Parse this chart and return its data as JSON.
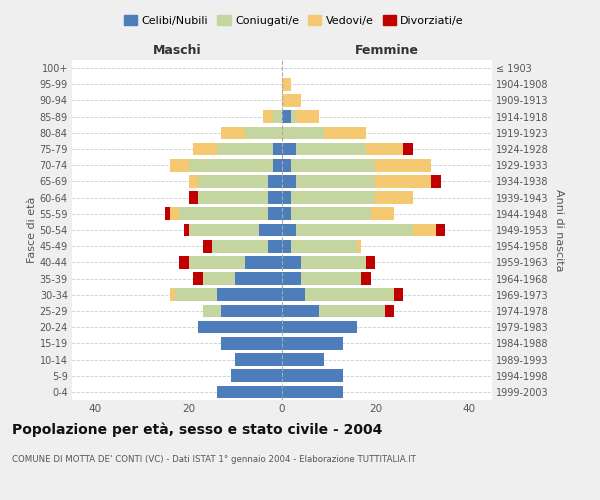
{
  "age_groups": [
    "0-4",
    "5-9",
    "10-14",
    "15-19",
    "20-24",
    "25-29",
    "30-34",
    "35-39",
    "40-44",
    "45-49",
    "50-54",
    "55-59",
    "60-64",
    "65-69",
    "70-74",
    "75-79",
    "80-84",
    "85-89",
    "90-94",
    "95-99",
    "100+"
  ],
  "birth_years": [
    "1999-2003",
    "1994-1998",
    "1989-1993",
    "1984-1988",
    "1979-1983",
    "1974-1978",
    "1969-1973",
    "1964-1968",
    "1959-1963",
    "1954-1958",
    "1949-1953",
    "1944-1948",
    "1939-1943",
    "1934-1938",
    "1929-1933",
    "1924-1928",
    "1919-1923",
    "1914-1918",
    "1909-1913",
    "1904-1908",
    "≤ 1903"
  ],
  "colors": {
    "celibi": "#4d7dba",
    "coniugati": "#c5d5a0",
    "vedovi": "#f5c872",
    "divorziati": "#c00000"
  },
  "maschi": {
    "celibi": [
      14,
      11,
      10,
      13,
      18,
      13,
      14,
      10,
      8,
      3,
      5,
      3,
      3,
      3,
      2,
      2,
      0,
      0,
      0,
      0,
      0
    ],
    "coniugati": [
      0,
      0,
      0,
      0,
      0,
      4,
      9,
      7,
      12,
      12,
      15,
      19,
      15,
      15,
      18,
      12,
      8,
      2,
      0,
      0,
      0
    ],
    "vedovi": [
      0,
      0,
      0,
      0,
      0,
      0,
      1,
      0,
      0,
      0,
      0,
      2,
      0,
      2,
      4,
      5,
      5,
      2,
      0,
      0,
      0
    ],
    "divorziati": [
      0,
      0,
      0,
      0,
      0,
      0,
      0,
      2,
      2,
      2,
      1,
      1,
      2,
      0,
      0,
      0,
      0,
      0,
      0,
      0,
      0
    ]
  },
  "femmine": {
    "celibi": [
      13,
      13,
      9,
      13,
      16,
      8,
      5,
      4,
      4,
      2,
      3,
      2,
      2,
      3,
      2,
      3,
      0,
      2,
      0,
      0,
      0
    ],
    "coniugati": [
      0,
      0,
      0,
      0,
      0,
      14,
      19,
      13,
      14,
      14,
      25,
      17,
      18,
      17,
      18,
      15,
      9,
      1,
      0,
      0,
      0
    ],
    "vedovi": [
      0,
      0,
      0,
      0,
      0,
      0,
      0,
      0,
      0,
      1,
      5,
      5,
      8,
      12,
      12,
      8,
      9,
      5,
      4,
      2,
      0
    ],
    "divorziati": [
      0,
      0,
      0,
      0,
      0,
      2,
      2,
      2,
      2,
      0,
      2,
      0,
      0,
      2,
      0,
      2,
      0,
      0,
      0,
      0,
      0
    ]
  },
  "title": "Popolazione per età, sesso e stato civile - 2004",
  "subtitle": "COMUNE DI MOTTA DE' CONTI (VC) - Dati ISTAT 1° gennaio 2004 - Elaborazione TUTTITALIA.IT",
  "xlabel_left": "Maschi",
  "xlabel_right": "Femmine",
  "ylabel_left": "Fasce di età",
  "ylabel_right": "Anni di nascita",
  "xlim": 45,
  "legend_labels": [
    "Celibi/Nubili",
    "Coniugati/e",
    "Vedovi/e",
    "Divorziati/e"
  ],
  "bg_color": "#efefef",
  "plot_bg_color": "#ffffff"
}
